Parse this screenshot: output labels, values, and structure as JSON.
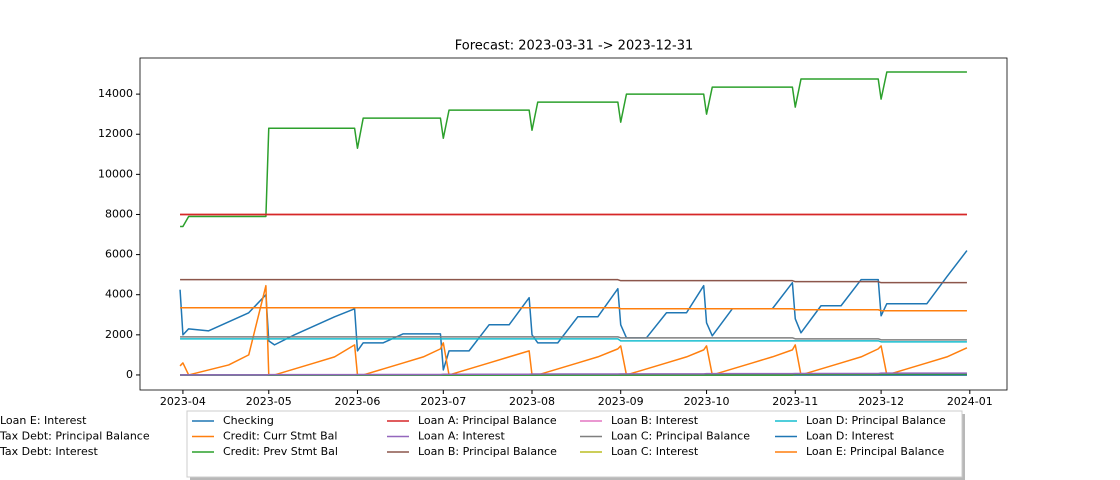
{
  "chart_data": {
    "type": "line",
    "title": "Forecast: 2023-03-31 -> 2023-12-31",
    "x": [
      "2023-03-31",
      "2023-04-01",
      "2023-04-03",
      "2023-04-10",
      "2023-04-17",
      "2023-04-24",
      "2023-04-30",
      "2023-05-01",
      "2023-05-03",
      "2023-05-10",
      "2023-05-17",
      "2023-05-24",
      "2023-05-31",
      "2023-06-01",
      "2023-06-03",
      "2023-06-10",
      "2023-06-17",
      "2023-06-24",
      "2023-06-30",
      "2023-07-01",
      "2023-07-03",
      "2023-07-10",
      "2023-07-17",
      "2023-07-24",
      "2023-07-31",
      "2023-08-01",
      "2023-08-03",
      "2023-08-10",
      "2023-08-17",
      "2023-08-24",
      "2023-08-31",
      "2023-09-01",
      "2023-09-03",
      "2023-09-10",
      "2023-09-17",
      "2023-09-24",
      "2023-09-30",
      "2023-10-01",
      "2023-10-03",
      "2023-10-10",
      "2023-10-17",
      "2023-10-24",
      "2023-10-31",
      "2023-11-01",
      "2023-11-03",
      "2023-11-10",
      "2023-11-17",
      "2023-11-24",
      "2023-11-30",
      "2023-12-01",
      "2023-12-03",
      "2023-12-10",
      "2023-12-17",
      "2023-12-24",
      "2023-12-31"
    ],
    "series": [
      {
        "name": "Checking",
        "color": "#1f77b4",
        "values": [
          4250,
          2000,
          2300,
          2200,
          2650,
          3100,
          4000,
          1700,
          1500,
          2000,
          2450,
          2900,
          3300,
          1200,
          1600,
          1600,
          2050,
          2050,
          2050,
          250,
          1200,
          1200,
          2500,
          2500,
          3850,
          2000,
          1600,
          1600,
          2900,
          2900,
          4300,
          2500,
          1850,
          1850,
          3100,
          3100,
          4450,
          2600,
          1950,
          3300,
          3300,
          3300,
          4600,
          2800,
          2100,
          3450,
          3450,
          4750,
          4750,
          2950,
          3550,
          3550,
          3550,
          4900,
          6200
        ]
      },
      {
        "name": "Credit: Curr Stmt Bal",
        "color": "#ff7f0e",
        "values": [
          450,
          600,
          0,
          250,
          500,
          1000,
          4450,
          0,
          0,
          300,
          600,
          900,
          1500,
          0,
          0,
          300,
          600,
          900,
          1300,
          1600,
          0,
          300,
          600,
          900,
          1200,
          0,
          0,
          300,
          600,
          900,
          1300,
          1450,
          0,
          300,
          600,
          900,
          1250,
          1450,
          0,
          300,
          600,
          900,
          1250,
          1500,
          0,
          300,
          600,
          900,
          1300,
          1450,
          0,
          300,
          600,
          900,
          1350
        ]
      },
      {
        "name": "Credit: Prev Stmt Bal",
        "color": "#2ca02c",
        "values": [
          7400,
          7400,
          7900,
          7900,
          7900,
          7900,
          7900,
          12300,
          12300,
          12300,
          12300,
          12300,
          12300,
          11300,
          12800,
          12800,
          12800,
          12800,
          12800,
          11800,
          13200,
          13200,
          13200,
          13200,
          13200,
          12200,
          13600,
          13600,
          13600,
          13600,
          13600,
          12600,
          14000,
          14000,
          14000,
          14000,
          14000,
          13000,
          14350,
          14350,
          14350,
          14350,
          14350,
          13350,
          14750,
          14750,
          14750,
          14750,
          14750,
          13750,
          15100,
          15100,
          15100,
          15100,
          15100
        ]
      },
      {
        "name": "Loan A: Principal Balance",
        "color": "#d62728",
        "values": [
          8000,
          8000,
          8000,
          8000,
          8000,
          8000,
          8000,
          8000,
          8000,
          8000,
          8000,
          8000,
          8000,
          8000,
          8000,
          8000,
          8000,
          8000,
          8000,
          8000,
          8000,
          8000,
          8000,
          8000,
          8000,
          8000,
          8000,
          8000,
          8000,
          8000,
          8000,
          8000,
          8000,
          8000,
          8000,
          8000,
          8000,
          8000,
          8000,
          8000,
          8000,
          8000,
          8000,
          8000,
          8000,
          8000,
          8000,
          8000,
          8000,
          8000,
          8000,
          8000,
          8000,
          8000,
          8000
        ]
      },
      {
        "name": "Loan A: Interest",
        "color": "#9467bd",
        "values": [
          0,
          0,
          0,
          0,
          0,
          0,
          0,
          0,
          0,
          0,
          0,
          0,
          0,
          0,
          0,
          0,
          0,
          0,
          0,
          0,
          0,
          0,
          0,
          0,
          0,
          0,
          0,
          0,
          0,
          0,
          0,
          0,
          0,
          0,
          0,
          0,
          0,
          0,
          0,
          0,
          0,
          0,
          0,
          0,
          0,
          0,
          0,
          0,
          0,
          0,
          0,
          0,
          0,
          0,
          0
        ]
      },
      {
        "name": "Loan B: Principal Balance",
        "color": "#8c564b",
        "values": [
          4750,
          4750,
          4750,
          4750,
          4750,
          4750,
          4750,
          4750,
          4750,
          4750,
          4750,
          4750,
          4750,
          4750,
          4750,
          4750,
          4750,
          4750,
          4750,
          4750,
          4750,
          4750,
          4750,
          4750,
          4750,
          4750,
          4750,
          4750,
          4750,
          4750,
          4750,
          4700,
          4700,
          4700,
          4700,
          4700,
          4700,
          4700,
          4700,
          4700,
          4700,
          4700,
          4700,
          4650,
          4650,
          4650,
          4650,
          4650,
          4650,
          4600,
          4600,
          4600,
          4600,
          4600,
          4600
        ]
      },
      {
        "name": "Loan B: Interest",
        "color": "#e377c2",
        "values": [
          0,
          0,
          0,
          0,
          0,
          0,
          0,
          0,
          0,
          0,
          0,
          0,
          0,
          0,
          0,
          0,
          0,
          0,
          0,
          0,
          0,
          0,
          0,
          0,
          0,
          0,
          0,
          0,
          0,
          0,
          0,
          0,
          0,
          0,
          0,
          0,
          0,
          0,
          0,
          0,
          0,
          0,
          0,
          0,
          0,
          0,
          0,
          0,
          0,
          0,
          0,
          0,
          0,
          0,
          0
        ]
      },
      {
        "name": "Loan C: Principal Balance",
        "color": "#7f7f7f",
        "values": [
          1900,
          1900,
          1900,
          1900,
          1900,
          1900,
          1900,
          1900,
          1900,
          1900,
          1900,
          1900,
          1900,
          1900,
          1900,
          1900,
          1900,
          1900,
          1900,
          1900,
          1900,
          1900,
          1900,
          1900,
          1900,
          1900,
          1900,
          1900,
          1900,
          1900,
          1900,
          1850,
          1850,
          1850,
          1850,
          1850,
          1850,
          1850,
          1850,
          1850,
          1850,
          1850,
          1850,
          1800,
          1800,
          1800,
          1800,
          1800,
          1800,
          1750,
          1750,
          1750,
          1750,
          1750,
          1750
        ]
      },
      {
        "name": "Loan C: Interest",
        "color": "#bcbd22",
        "values": [
          0,
          0,
          0,
          0,
          0,
          0,
          0,
          0,
          0,
          0,
          0,
          0,
          0,
          0,
          0,
          0,
          0,
          0,
          0,
          0,
          0,
          0,
          0,
          0,
          0,
          0,
          0,
          0,
          0,
          0,
          0,
          0,
          0,
          0,
          0,
          0,
          0,
          0,
          0,
          0,
          0,
          0,
          0,
          0,
          0,
          0,
          0,
          0,
          0,
          0,
          0,
          0,
          0,
          0,
          0
        ]
      },
      {
        "name": "Loan D: Principal Balance",
        "color": "#17becf",
        "values": [
          1800,
          1800,
          1800,
          1800,
          1800,
          1800,
          1800,
          1800,
          1800,
          1800,
          1800,
          1800,
          1800,
          1800,
          1800,
          1800,
          1800,
          1800,
          1800,
          1800,
          1800,
          1800,
          1800,
          1800,
          1800,
          1800,
          1800,
          1800,
          1800,
          1800,
          1800,
          1700,
          1700,
          1700,
          1700,
          1700,
          1700,
          1700,
          1700,
          1700,
          1700,
          1700,
          1700,
          1700,
          1700,
          1700,
          1700,
          1700,
          1700,
          1650,
          1650,
          1650,
          1650,
          1650,
          1650
        ]
      },
      {
        "name": "Loan D: Interest",
        "color": "#1f77b4",
        "values": [
          0,
          0,
          0,
          0,
          0,
          0,
          0,
          0,
          0,
          0,
          0,
          0,
          0,
          0,
          0,
          0,
          0,
          0,
          0,
          0,
          0,
          0,
          0,
          0,
          0,
          0,
          0,
          0,
          0,
          0,
          0,
          0,
          0,
          0,
          0,
          0,
          0,
          0,
          0,
          0,
          0,
          0,
          0,
          0,
          0,
          0,
          0,
          0,
          0,
          0,
          0,
          0,
          0,
          0,
          0
        ]
      },
      {
        "name": "Loan E: Principal Balance",
        "color": "#ff7f0e",
        "values": [
          3350,
          3350,
          3350,
          3350,
          3350,
          3350,
          3350,
          3350,
          3350,
          3350,
          3350,
          3350,
          3350,
          3350,
          3350,
          3350,
          3350,
          3350,
          3350,
          3350,
          3350,
          3350,
          3350,
          3350,
          3350,
          3350,
          3350,
          3350,
          3350,
          3350,
          3350,
          3300,
          3300,
          3300,
          3300,
          3300,
          3300,
          3300,
          3300,
          3300,
          3300,
          3300,
          3300,
          3250,
          3250,
          3250,
          3250,
          3250,
          3250,
          3200,
          3200,
          3200,
          3200,
          3200,
          3200
        ]
      },
      {
        "name": "Loan E: Interest",
        "color": "#2ca02c",
        "values": [
          0,
          0,
          0,
          0,
          0,
          0,
          0,
          0,
          0,
          0,
          0,
          0,
          0,
          0,
          0,
          0,
          0,
          0,
          0,
          0,
          0,
          0,
          0,
          0,
          0,
          0,
          0,
          0,
          0,
          0,
          0,
          0,
          0,
          0,
          0,
          0,
          0,
          0,
          0,
          0,
          0,
          0,
          0,
          30,
          30,
          30,
          30,
          30,
          30,
          50,
          50,
          50,
          50,
          50,
          50
        ]
      },
      {
        "name": "Tax Debt: Principal Balance",
        "color": "#d62728",
        "values": [
          8000,
          8000,
          8000,
          8000,
          8000,
          8000,
          8000,
          8000,
          8000,
          8000,
          8000,
          8000,
          8000,
          8000,
          8000,
          8000,
          8000,
          8000,
          8000,
          8000,
          8000,
          8000,
          8000,
          8000,
          8000,
          8000,
          8000,
          8000,
          8000,
          8000,
          8000,
          8000,
          8000,
          8000,
          8000,
          8000,
          8000,
          8000,
          8000,
          8000,
          8000,
          8000,
          8000,
          8000,
          8000,
          8000,
          8000,
          8000,
          8000,
          8000,
          8000,
          8000,
          8000,
          8000,
          8000
        ]
      },
      {
        "name": "Tax Debt: Interest",
        "color": "#9467bd",
        "values": [
          0,
          5,
          5,
          5,
          5,
          5,
          5,
          15,
          15,
          15,
          15,
          15,
          15,
          25,
          25,
          25,
          25,
          25,
          25,
          35,
          35,
          35,
          35,
          35,
          35,
          45,
          45,
          45,
          45,
          45,
          45,
          55,
          55,
          55,
          55,
          55,
          55,
          65,
          65,
          65,
          65,
          65,
          65,
          75,
          75,
          75,
          75,
          75,
          75,
          90,
          90,
          90,
          90,
          90,
          90
        ]
      }
    ],
    "xlim": [
      "2023-03-17",
      "2024-01-14"
    ],
    "xticks": [
      {
        "value": "2023-04-01",
        "label": "2023-04"
      },
      {
        "value": "2023-05-01",
        "label": "2023-05"
      },
      {
        "value": "2023-06-01",
        "label": "2023-06"
      },
      {
        "value": "2023-07-01",
        "label": "2023-07"
      },
      {
        "value": "2023-08-01",
        "label": "2023-08"
      },
      {
        "value": "2023-09-01",
        "label": "2023-09"
      },
      {
        "value": "2023-10-01",
        "label": "2023-10"
      },
      {
        "value": "2023-11-01",
        "label": "2023-11"
      },
      {
        "value": "2023-12-01",
        "label": "2023-12"
      },
      {
        "value": "2024-01-01",
        "label": "2024-01"
      }
    ],
    "ylim": [
      -750,
      15800
    ],
    "yticks": [
      0,
      2000,
      4000,
      6000,
      8000,
      10000,
      12000,
      14000
    ],
    "legend": "lower center"
  }
}
